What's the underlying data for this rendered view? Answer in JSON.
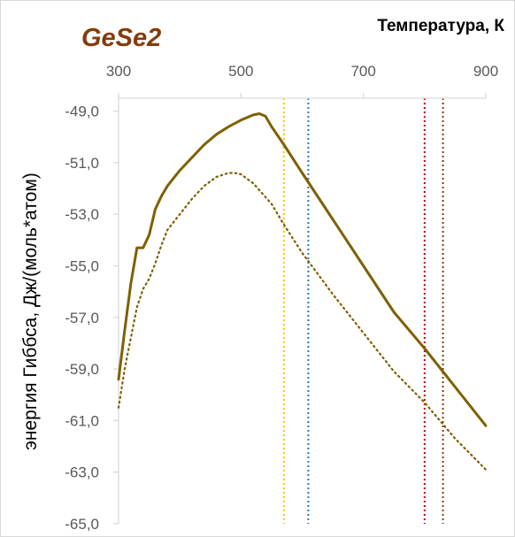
{
  "chart_data": {
    "type": "line",
    "title": "GeSe2",
    "xlabel": "Температура, К",
    "ylabel": "энергия Гиббса, Дж/(моль*атом)",
    "xlim": [
      300,
      900
    ],
    "ylim": [
      -65,
      -48
    ],
    "x_axis_position": "top",
    "x_ticks": [
      300,
      500,
      700,
      900
    ],
    "x_tick_labels": [
      "300",
      "500",
      "700",
      "900"
    ],
    "y_ticks": [
      -49,
      -51,
      -53,
      -55,
      -57,
      -59,
      -61,
      -63,
      -65
    ],
    "y_tick_labels": [
      "-49,0",
      "-51,0",
      "-53,0",
      "-55,0",
      "-57,0",
      "-59,0",
      "-61,0",
      "-63,0",
      "-65,0"
    ],
    "grid": false,
    "legend": "none",
    "series": [
      {
        "style": "solid",
        "color": "#7f6000",
        "x": [
          300,
          310,
          320,
          330,
          340,
          350,
          360,
          370,
          380,
          400,
          420,
          440,
          460,
          480,
          500,
          520,
          530,
          540,
          550,
          570,
          600,
          650,
          700,
          750,
          800,
          850,
          900
        ],
        "y": [
          -59.4,
          -57.5,
          -55.7,
          -54.3,
          -54.3,
          -53.8,
          -52.8,
          -52.3,
          -51.9,
          -51.3,
          -50.8,
          -50.3,
          -49.9,
          -49.6,
          -49.35,
          -49.15,
          -49.1,
          -49.2,
          -49.6,
          -50.3,
          -51.4,
          -53.2,
          -55.0,
          -56.8,
          -58.2,
          -59.7,
          -61.2
        ]
      },
      {
        "style": "dotted",
        "color": "#7f6000",
        "x": [
          300,
          310,
          320,
          330,
          340,
          350,
          360,
          370,
          380,
          400,
          420,
          440,
          460,
          480,
          490,
          500,
          520,
          550,
          570,
          600,
          650,
          700,
          750,
          800,
          850,
          900
        ],
        "y": [
          -60.5,
          -59.0,
          -57.8,
          -56.6,
          -55.9,
          -55.5,
          -54.9,
          -54.2,
          -53.6,
          -53.0,
          -52.4,
          -51.9,
          -51.55,
          -51.4,
          -51.4,
          -51.45,
          -51.8,
          -52.6,
          -53.4,
          -54.5,
          -56.1,
          -57.6,
          -59.1,
          -60.3,
          -61.7,
          -62.9
        ]
      }
    ],
    "vertical_lines": [
      {
        "x": 570,
        "color": "#ffc000",
        "style": "dotted"
      },
      {
        "x": 610,
        "color": "#2e75b6",
        "style": "dotted"
      },
      {
        "x": 800,
        "color": "#c00000",
        "style": "dotted"
      },
      {
        "x": 830,
        "color": "#843c0c",
        "style": "dotted"
      }
    ],
    "title_color": "#843c0c",
    "axis_color": "#d9d9d9",
    "tick_label_color": "#595959"
  }
}
